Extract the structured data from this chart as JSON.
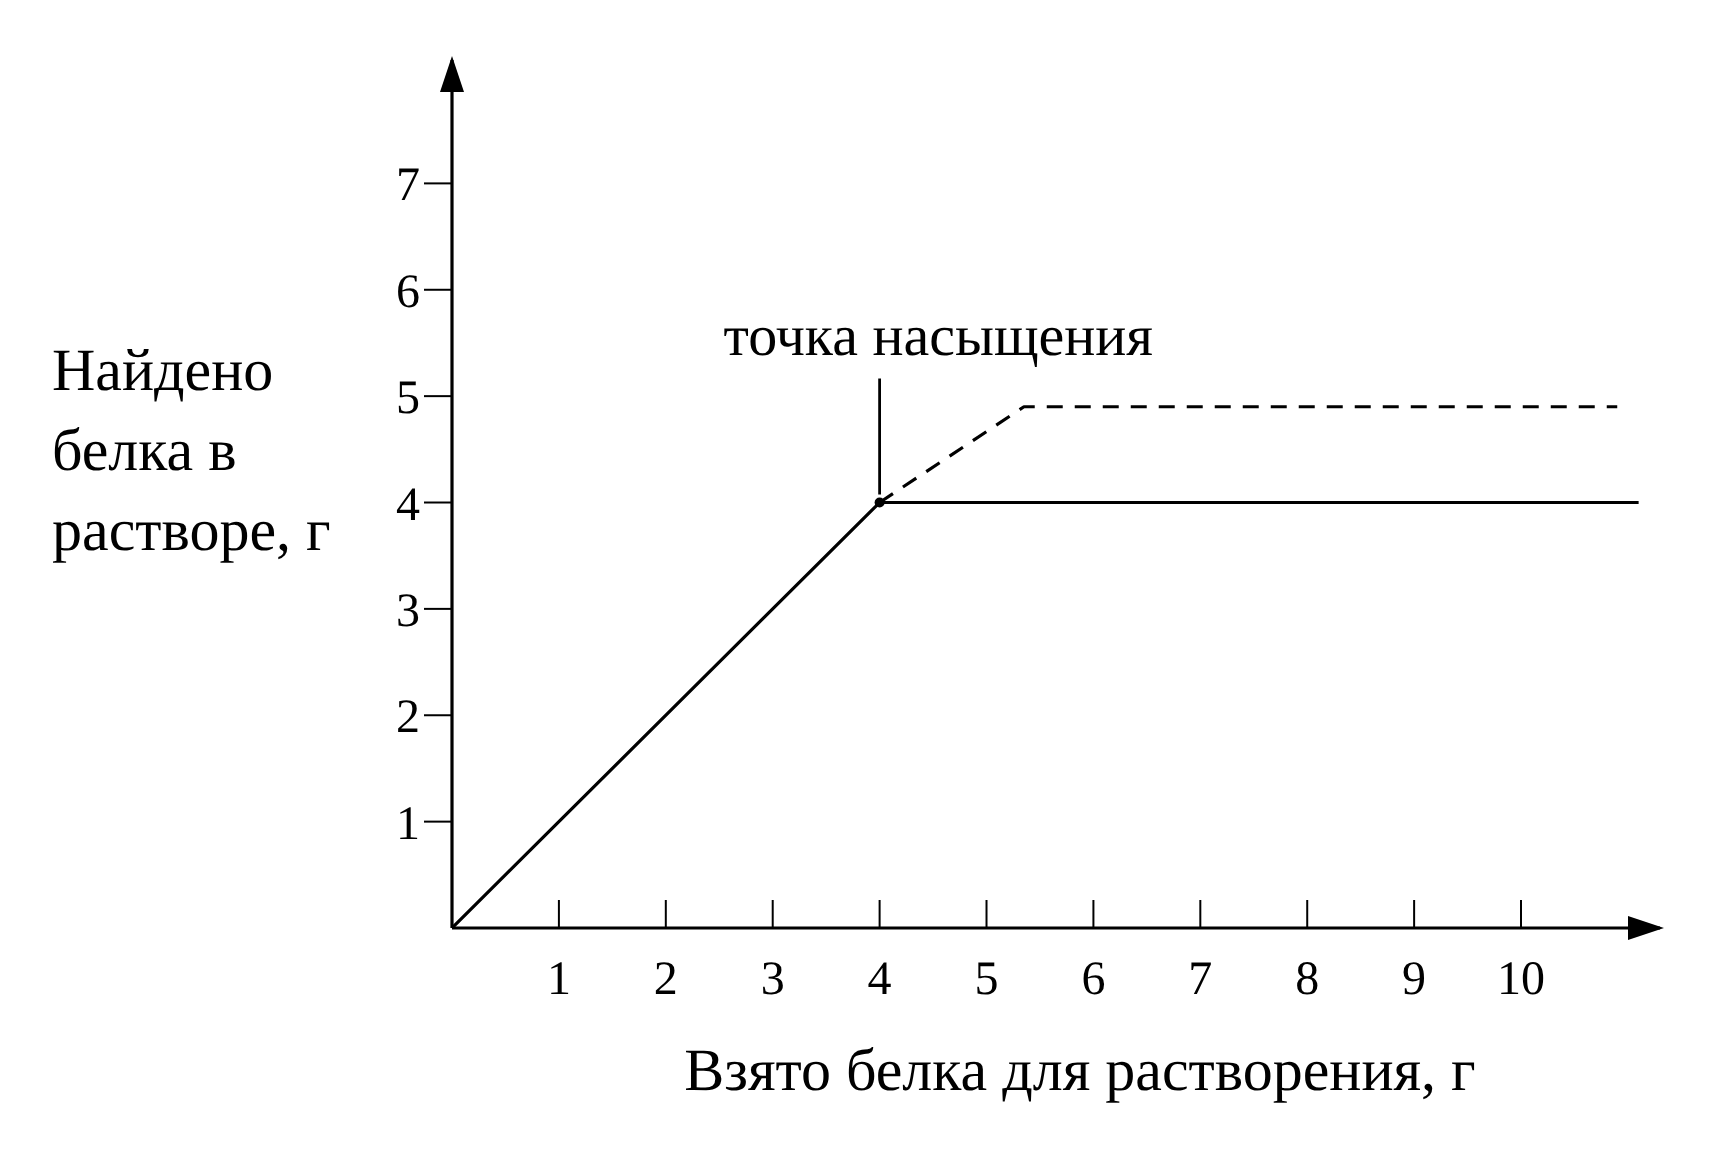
{
  "chart_data": {
    "type": "line",
    "xlabel": "Взято белка для растворения, г",
    "ylabel": "Найдено белка в растворе, г",
    "xlim": [
      0,
      11.3
    ],
    "ylim": [
      0,
      8.16
    ],
    "xticks": [
      1,
      2,
      3,
      4,
      5,
      6,
      7,
      8,
      9,
      10
    ],
    "yticks": [
      1,
      2,
      3,
      4,
      5,
      6,
      7
    ],
    "grid": false,
    "series": [
      {
        "color": "#000000",
        "x": [
          0,
          4,
          11.1
        ],
        "values": [
          0,
          4,
          4
        ],
        "line_style": "solid",
        "marker": "none"
      },
      {
        "color": "#000000",
        "x": [
          4,
          5.35,
          10.9
        ],
        "values": [
          4,
          4.9,
          4.9
        ],
        "line_style": "dashed",
        "marker": "none"
      },
      {
        "type": "scatter",
        "color": "#000000",
        "x": [
          4
        ],
        "values": [
          4
        ],
        "marker": "circle"
      }
    ],
    "annotations": [
      {
        "text": "точка насыщения",
        "x": 4,
        "y": 4
      }
    ]
  }
}
